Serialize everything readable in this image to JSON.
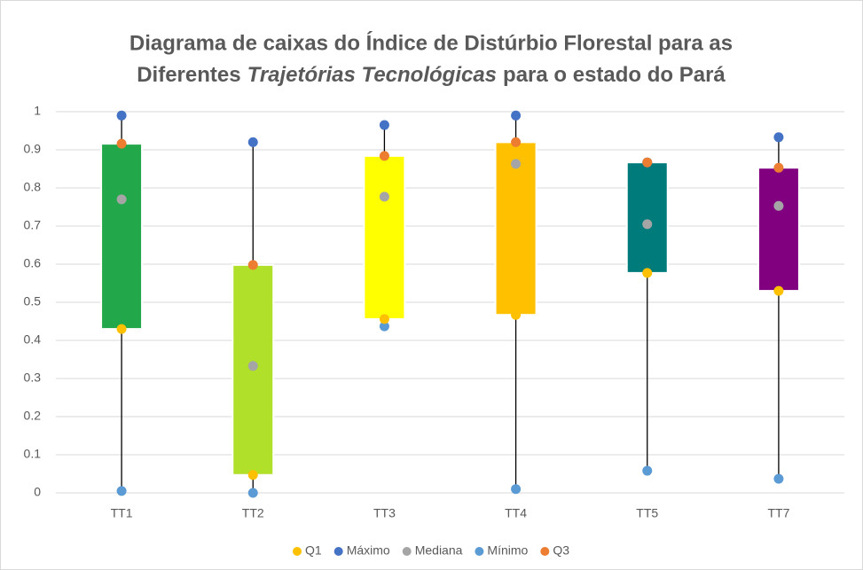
{
  "chart_data": {
    "type": "box",
    "title": [
      {
        "text": "Diagrama de caixas do Índice de Distúrbio Florestal para as"
      },
      {
        "text": "Diferentes"
      },
      {
        "text": "Trajetórias Tecnológicas",
        "italic": true
      },
      {
        "text": "para o estado do Pará"
      }
    ],
    "categories": [
      "TT1",
      "TT2",
      "TT3",
      "TT4",
      "TT5",
      "TT7"
    ],
    "box_colors": [
      "#22a84a",
      "#b0e02a",
      "#ffff00",
      "#ffc000",
      "#007b7b",
      "#800080"
    ],
    "series": [
      {
        "name": "Q1",
        "color": "#ffc000",
        "values": [
          0.43,
          0.047,
          0.456,
          0.467,
          0.577,
          0.53
        ]
      },
      {
        "name": "Máximo",
        "color": "#4472c4",
        "values": [
          0.99,
          0.92,
          0.965,
          0.99,
          0.867,
          0.933
        ]
      },
      {
        "name": "Mediana",
        "color": "#a5a5a5",
        "values": [
          0.77,
          0.333,
          0.777,
          0.863,
          0.705,
          0.753
        ]
      },
      {
        "name": "Mínimo",
        "color": "#5b9bd5",
        "values": [
          0.005,
          0,
          0.437,
          0.01,
          0.058,
          0.037
        ]
      },
      {
        "name": "Q3",
        "color": "#ed7d31",
        "values": [
          0.916,
          0.598,
          0.884,
          0.92,
          0.867,
          0.853
        ]
      }
    ],
    "ylim": [
      0,
      1
    ],
    "yticks": [
      0,
      0.1,
      0.2,
      0.3,
      0.4,
      0.5,
      0.6,
      0.7,
      0.8,
      0.9,
      1
    ],
    "grid": true,
    "legend": "bottom"
  }
}
